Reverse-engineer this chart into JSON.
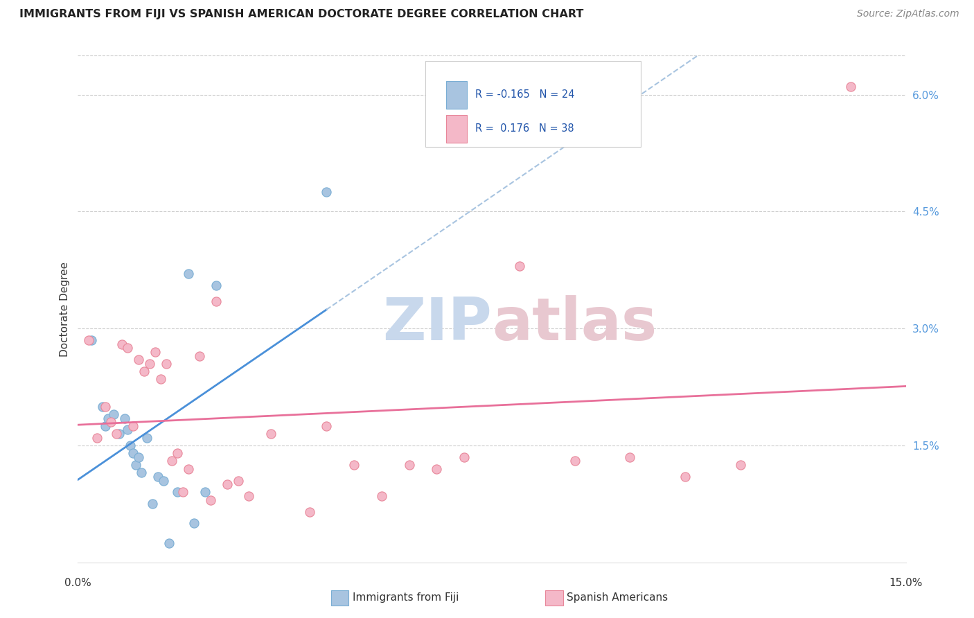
{
  "title": "IMMIGRANTS FROM FIJI VS SPANISH AMERICAN DOCTORATE DEGREE CORRELATION CHART",
  "source": "Source: ZipAtlas.com",
  "ylabel": "Doctorate Degree",
  "ytick_values": [
    1.5,
    3.0,
    4.5,
    6.0
  ],
  "xlim": [
    0.0,
    15.0
  ],
  "ylim": [
    0.0,
    6.5
  ],
  "legend_fiji_r": "-0.165",
  "legend_fiji_n": "24",
  "legend_spanish_r": "0.176",
  "legend_spanish_n": "38",
  "fiji_color": "#a8c4e0",
  "fiji_edge_color": "#7aaed4",
  "spanish_color": "#f4b8c8",
  "spanish_edge_color": "#e8879a",
  "fiji_line_color": "#4a90d9",
  "fiji_dash_color": "#a8c4e0",
  "spanish_line_color": "#e8709a",
  "watermark_zip_color": "#c8d8ec",
  "watermark_atlas_color": "#e8c8d0",
  "background_color": "#ffffff",
  "grid_color": "#cccccc",
  "right_tick_color": "#5599dd",
  "fiji_points_x": [
    0.25,
    0.45,
    0.5,
    0.55,
    0.65,
    0.75,
    0.85,
    0.9,
    0.95,
    1.0,
    1.05,
    1.1,
    1.15,
    1.25,
    1.35,
    1.45,
    1.55,
    1.65,
    1.8,
    2.0,
    2.1,
    2.3,
    2.5,
    4.5
  ],
  "fiji_points_y": [
    2.85,
    2.0,
    1.75,
    1.85,
    1.9,
    1.65,
    1.85,
    1.7,
    1.5,
    1.4,
    1.25,
    1.35,
    1.15,
    1.6,
    0.75,
    1.1,
    1.05,
    0.25,
    0.9,
    3.7,
    0.5,
    0.9,
    3.55,
    4.75
  ],
  "spanish_points_x": [
    0.2,
    0.35,
    0.5,
    0.6,
    0.7,
    0.8,
    0.9,
    1.0,
    1.1,
    1.2,
    1.3,
    1.4,
    1.5,
    1.6,
    1.7,
    1.8,
    1.9,
    2.0,
    2.2,
    2.4,
    2.5,
    2.7,
    2.9,
    3.1,
    3.5,
    4.2,
    4.5,
    5.0,
    5.5,
    6.0,
    6.5,
    7.0,
    8.0,
    9.0,
    10.0,
    11.0,
    12.0,
    14.0
  ],
  "spanish_points_y": [
    2.85,
    1.6,
    2.0,
    1.8,
    1.65,
    2.8,
    2.75,
    1.75,
    2.6,
    2.45,
    2.55,
    2.7,
    2.35,
    2.55,
    1.3,
    1.4,
    0.9,
    1.2,
    2.65,
    0.8,
    3.35,
    1.0,
    1.05,
    0.85,
    1.65,
    0.65,
    1.75,
    1.25,
    0.85,
    1.25,
    1.2,
    1.35,
    3.8,
    1.3,
    1.35,
    1.1,
    1.25,
    6.1
  ]
}
